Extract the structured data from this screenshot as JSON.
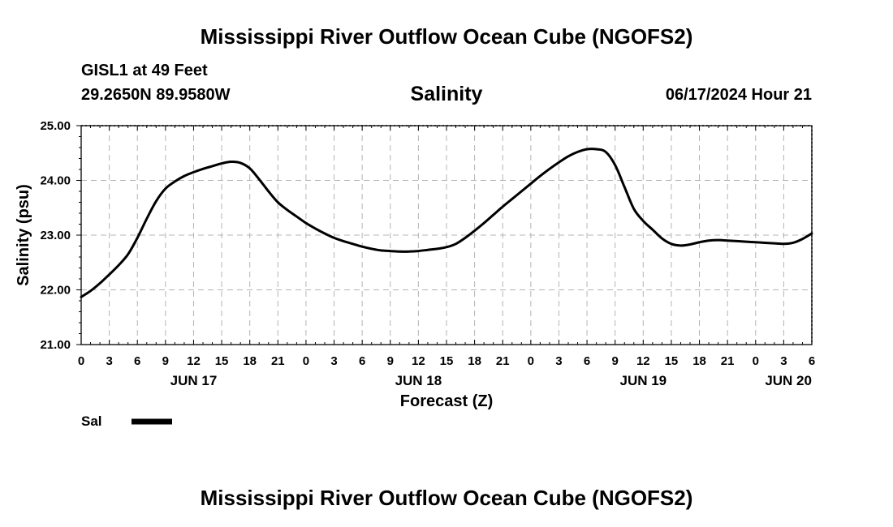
{
  "page": {
    "title_top": "Mississippi River Outflow Ocean Cube (NGOFS2)",
    "title_bottom": "Mississippi River Outflow Ocean Cube (NGOFS2)",
    "station": "GISL1 at 49 Feet",
    "coords": "29.2650N  89.9580W",
    "datetime": "06/17/2024 Hour 21"
  },
  "chart_data": {
    "type": "line",
    "title": "Salinity",
    "xlabel": "Forecast (Z)",
    "ylabel": "Salinity (psu)",
    "ylim": [
      21.0,
      25.0
    ],
    "xlim_hours": [
      0,
      78
    ],
    "y_ticks": [
      "21.00",
      "22.00",
      "23.00",
      "24.00",
      "25.00"
    ],
    "x_tick_labels": [
      "0",
      "3",
      "6",
      "9",
      "12",
      "15",
      "18",
      "21",
      "0",
      "3",
      "6",
      "9",
      "12",
      "15",
      "18",
      "21",
      "0",
      "3",
      "6",
      "9",
      "12",
      "15",
      "18",
      "21",
      "0",
      "3",
      "6"
    ],
    "day_labels": [
      {
        "label": "JUN 17",
        "hour": 12
      },
      {
        "label": "JUN 18",
        "hour": 36
      },
      {
        "label": "JUN 19",
        "hour": 60
      },
      {
        "label": "JUN 20",
        "hour": 75.5
      }
    ],
    "grid": true,
    "legend": [
      {
        "name": "Sal",
        "color": "#000000"
      }
    ],
    "series": [
      {
        "name": "Sal",
        "x_hours": [
          0,
          1,
          2,
          3,
          4,
          5,
          6,
          7,
          8,
          9,
          10,
          11,
          12,
          13,
          14,
          15,
          16,
          17,
          18,
          19,
          20,
          21,
          22,
          23,
          24,
          25,
          26,
          27,
          28,
          29,
          30,
          31,
          32,
          33,
          34,
          35,
          36,
          37,
          38,
          39,
          40,
          41,
          42,
          43,
          44,
          45,
          46,
          47,
          48,
          49,
          50,
          51,
          52,
          53,
          54,
          55,
          56,
          57,
          58,
          59,
          60,
          61,
          62,
          63,
          64,
          65,
          66,
          67,
          68,
          69,
          70,
          71,
          72,
          73,
          74,
          75,
          76,
          77,
          78
        ],
        "values": [
          21.87,
          21.98,
          22.12,
          22.28,
          22.45,
          22.65,
          22.95,
          23.3,
          23.62,
          23.85,
          23.98,
          24.08,
          24.15,
          24.21,
          24.26,
          24.31,
          24.34,
          24.32,
          24.22,
          24.02,
          23.8,
          23.6,
          23.46,
          23.34,
          23.22,
          23.12,
          23.03,
          22.95,
          22.89,
          22.84,
          22.79,
          22.75,
          22.72,
          22.71,
          22.7,
          22.7,
          22.71,
          22.73,
          22.75,
          22.78,
          22.84,
          22.95,
          23.08,
          23.22,
          23.37,
          23.52,
          23.66,
          23.8,
          23.94,
          24.08,
          24.21,
          24.33,
          24.44,
          24.52,
          24.57,
          24.57,
          24.52,
          24.28,
          23.88,
          23.48,
          23.26,
          23.1,
          22.94,
          22.84,
          22.81,
          22.83,
          22.87,
          22.9,
          22.91,
          22.9,
          22.89,
          22.88,
          22.87,
          22.86,
          22.85,
          22.84,
          22.86,
          22.93,
          23.03
        ]
      }
    ]
  }
}
